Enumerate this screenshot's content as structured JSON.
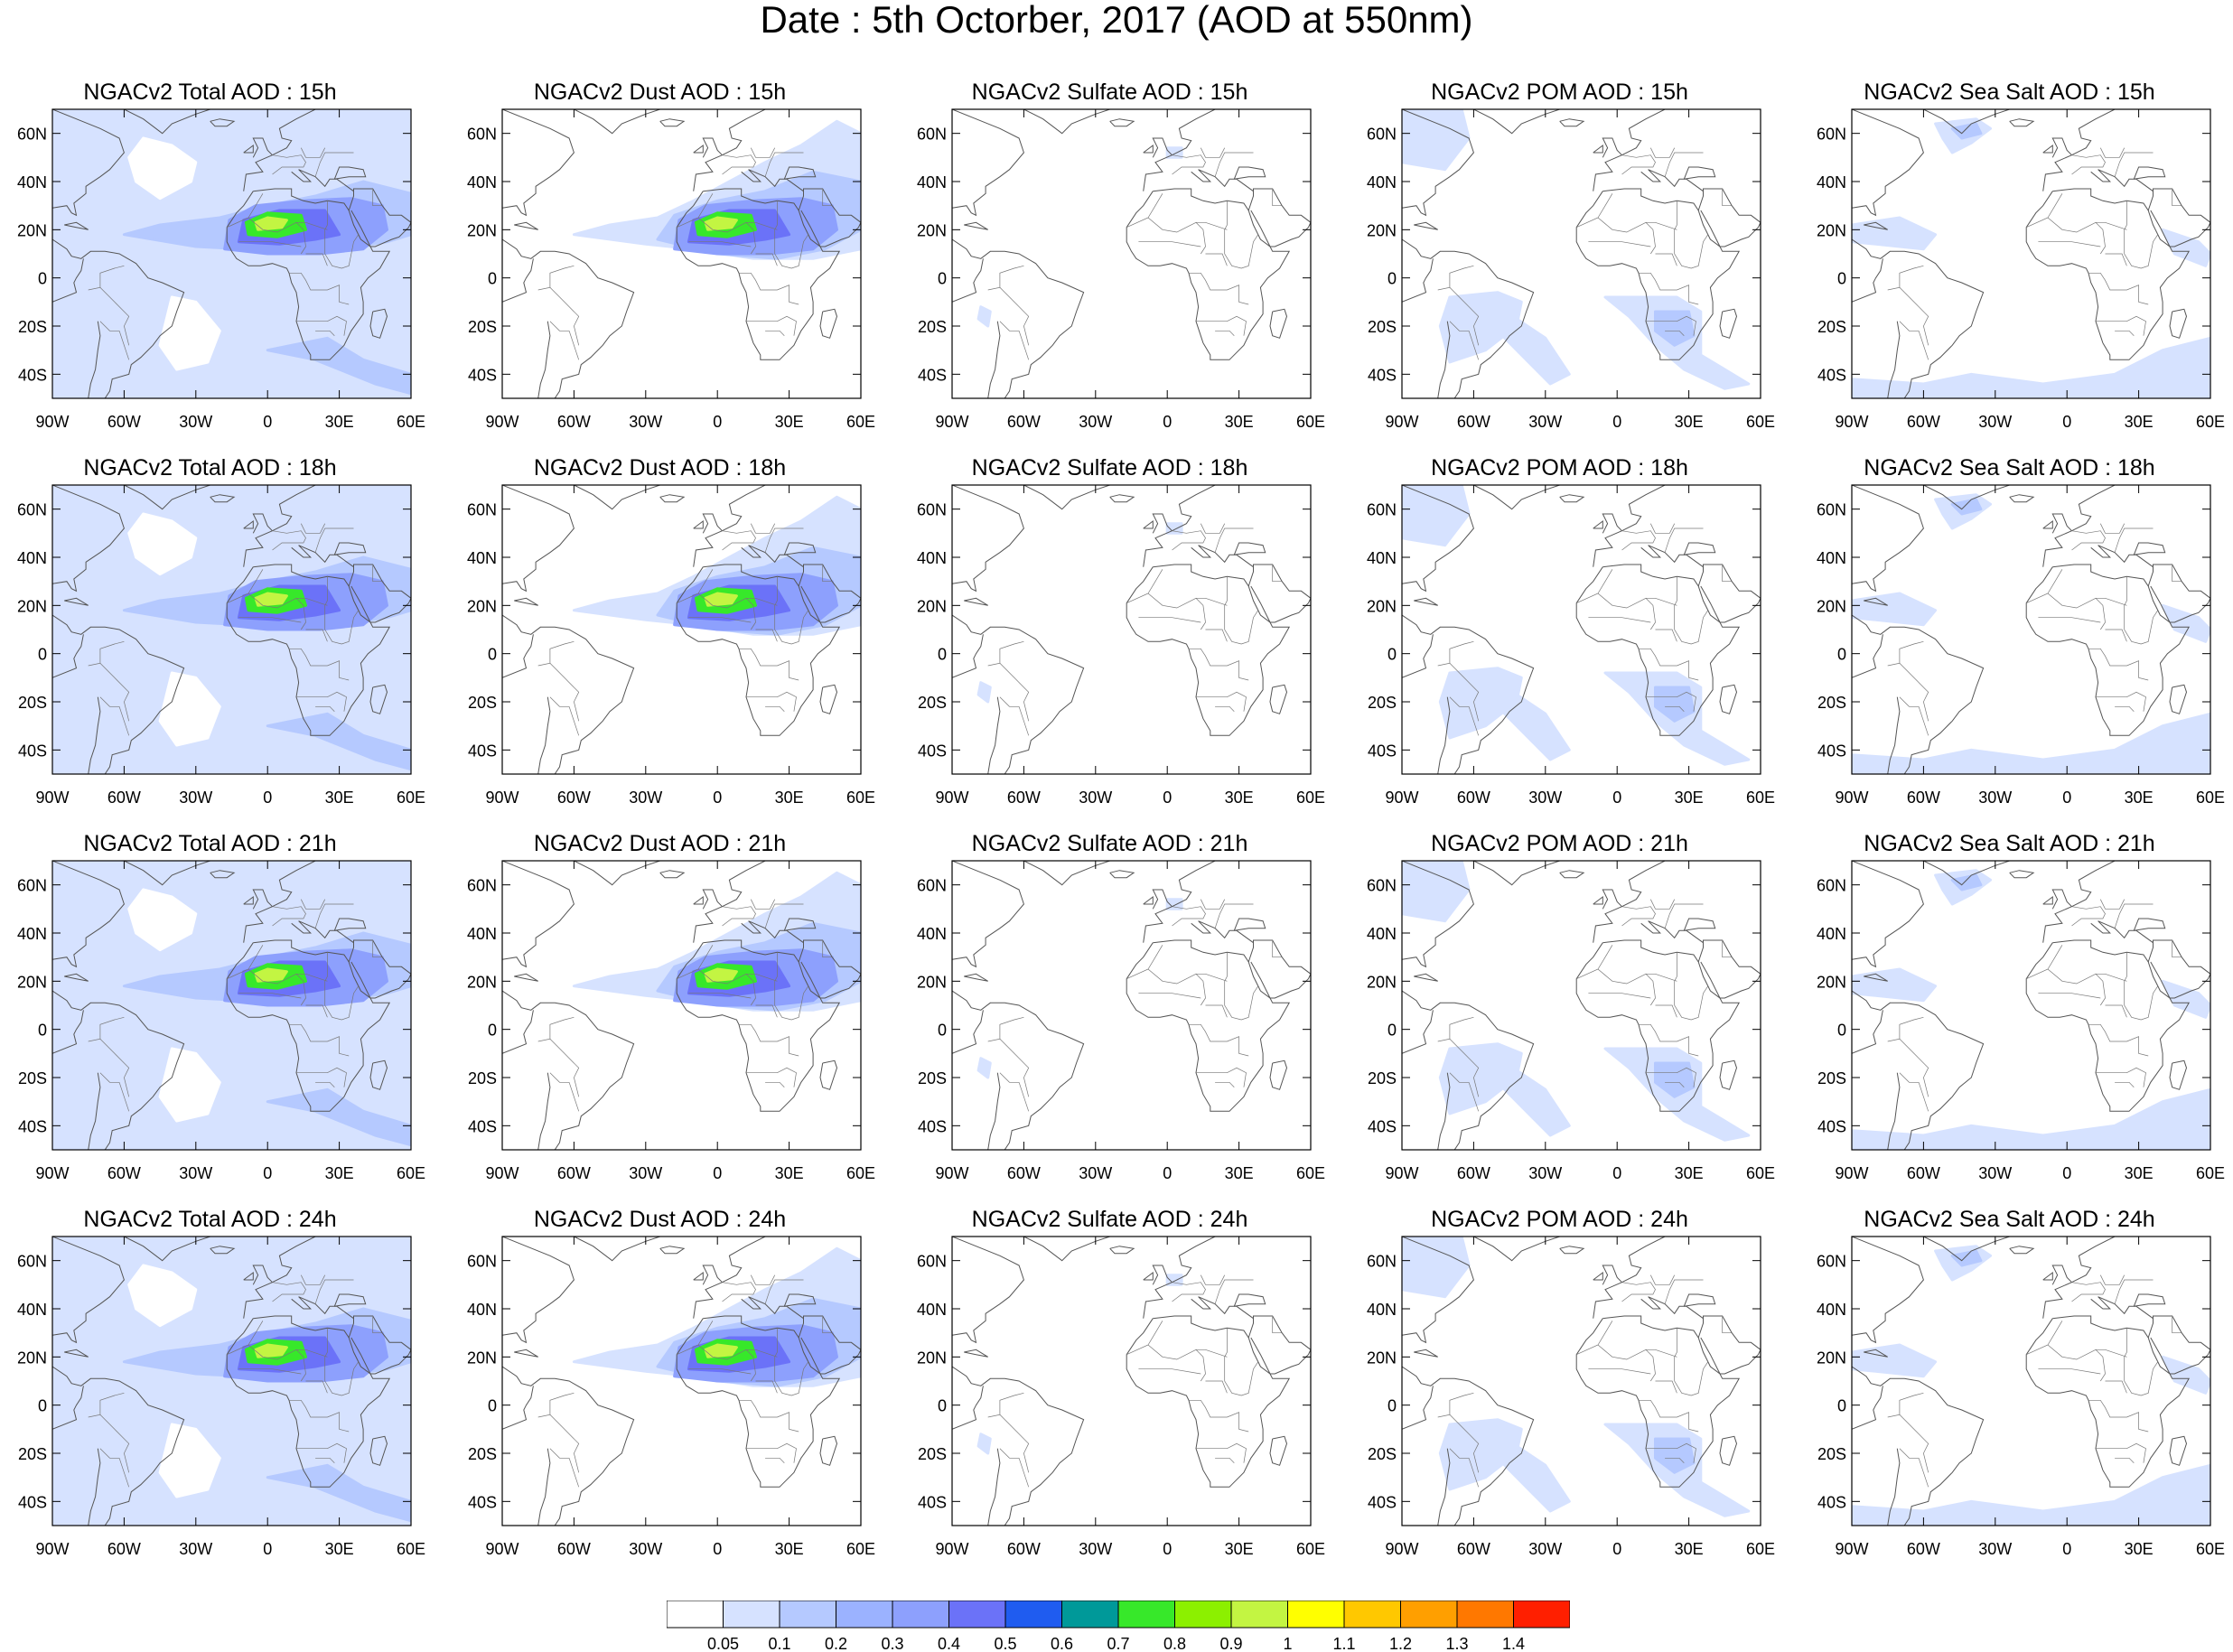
{
  "figure": {
    "title": "Date : 5th Octorber, 2017 (AOD at 550nm)"
  },
  "lat_ticks": [
    "60N",
    "40N",
    "20N",
    "0",
    "20S",
    "40S"
  ],
  "lon_ticks": [
    "90W",
    "60W",
    "30W",
    "0",
    "30E",
    "60E"
  ],
  "panels": [
    {
      "title": "NGACv2 Total AOD : 15h",
      "species": "total"
    },
    {
      "title": "NGACv2 Dust AOD : 15h",
      "species": "dust"
    },
    {
      "title": "NGACv2 Sulfate AOD : 15h",
      "species": "sulfate"
    },
    {
      "title": "NGACv2 POM AOD : 15h",
      "species": "pom"
    },
    {
      "title": "NGACv2 Sea Salt AOD : 15h",
      "species": "seasalt"
    },
    {
      "title": "NGACv2 Total AOD : 18h",
      "species": "total"
    },
    {
      "title": "NGACv2 Dust AOD : 18h",
      "species": "dust"
    },
    {
      "title": "NGACv2 Sulfate AOD : 18h",
      "species": "sulfate"
    },
    {
      "title": "NGACv2 POM AOD : 18h",
      "species": "pom"
    },
    {
      "title": "NGACv2 Sea Salt AOD : 18h",
      "species": "seasalt"
    },
    {
      "title": "NGACv2 Total AOD : 21h",
      "species": "total"
    },
    {
      "title": "NGACv2 Dust AOD : 21h",
      "species": "dust"
    },
    {
      "title": "NGACv2 Sulfate AOD : 21h",
      "species": "sulfate"
    },
    {
      "title": "NGACv2 POM AOD : 21h",
      "species": "pom"
    },
    {
      "title": "NGACv2 Sea Salt AOD : 21h",
      "species": "seasalt"
    },
    {
      "title": "NGACv2 Total AOD : 24h",
      "species": "total"
    },
    {
      "title": "NGACv2 Dust AOD : 24h",
      "species": "dust"
    },
    {
      "title": "NGACv2 Sulfate AOD : 24h",
      "species": "sulfate"
    },
    {
      "title": "NGACv2 POM AOD : 24h",
      "species": "pom"
    },
    {
      "title": "NGACv2 Sea Salt  AOD : 24h",
      "species": "seasalt"
    }
  ],
  "colorbar": {
    "levels": [
      "0.05",
      "0.1",
      "0.2",
      "0.3",
      "0.4",
      "0.5",
      "0.6",
      "0.7",
      "0.8",
      "0.9",
      "1",
      "1.1",
      "1.2",
      "1.3",
      "1.4"
    ],
    "colors": [
      "#ffffff",
      "#d6e2ff",
      "#b5c9ff",
      "#9bb2ff",
      "#8da0fd",
      "#6b72f8",
      "#1f5cf0",
      "#009999",
      "#37e82a",
      "#8cf000",
      "#c3f542",
      "#ffff00",
      "#ffc800",
      "#ff9f00",
      "#ff7800",
      "#ff1f00"
    ]
  },
  "palette": {
    "aod_low": "#d6e2ff",
    "aod_mid": "#b5c9ff",
    "aod_high": "#8da0fd",
    "aod_max": "#6b72f8",
    "dust_core": "#37e82a",
    "dust_peak": "#c3f542",
    "coast": "#555555"
  }
}
